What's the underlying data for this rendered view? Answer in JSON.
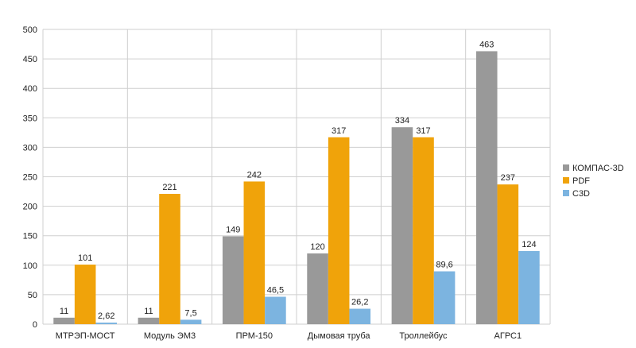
{
  "chart_data": {
    "type": "bar",
    "categories": [
      "МТРЭП-МОСТ",
      "Модуль ЭМ3",
      "ПРМ-150",
      "Дымовая труба",
      "Троллейбус",
      "АГРС1"
    ],
    "series": [
      {
        "name": "КОМПАС-3D",
        "values": [
          11,
          11,
          149,
          120,
          334,
          463
        ],
        "labels": [
          "11",
          "11",
          "149",
          "120",
          "334",
          "463"
        ],
        "color": "#999999"
      },
      {
        "name": "PDF",
        "values": [
          101,
          221,
          242,
          317,
          317,
          237
        ],
        "labels": [
          "101",
          "221",
          "242",
          "317",
          "317",
          "237"
        ],
        "color": "#f0a30a"
      },
      {
        "name": "C3D",
        "values": [
          2.62,
          7.5,
          46.5,
          26.2,
          89.6,
          124
        ],
        "labels": [
          "2,62",
          "7,5",
          "46,5",
          "26,2",
          "89,6",
          "124"
        ],
        "color": "#7cb4e0"
      }
    ],
    "ylim": [
      0,
      500
    ],
    "yticks": [
      "0",
      "50",
      "100",
      "150",
      "200",
      "250",
      "300",
      "350",
      "400",
      "450",
      "500"
    ],
    "grid": true,
    "legend": "right"
  }
}
